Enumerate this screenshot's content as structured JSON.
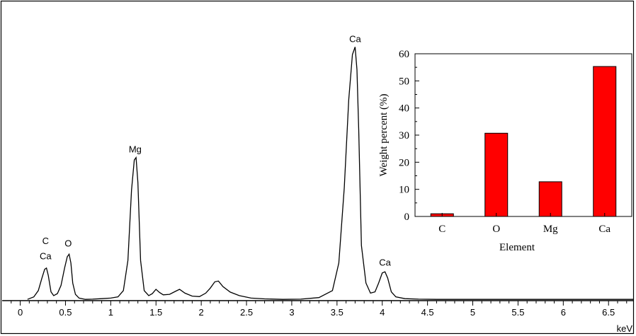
{
  "chart_data": [
    {
      "type": "line",
      "title": "",
      "xlabel": "keV",
      "ylabel": "",
      "xlim": [
        -0.2,
        6.78
      ],
      "ylim": [
        0,
        100
      ],
      "x_ticks": [
        "0",
        "0.5",
        "1",
        "1.5",
        "2",
        "2.5",
        "3",
        "3.5",
        "4",
        "4.5",
        "5",
        "5.5",
        "6",
        "6.5"
      ],
      "series": [
        {
          "x": [
            0.08,
            0.15,
            0.2,
            0.24,
            0.27,
            0.29,
            0.31,
            0.34,
            0.37,
            0.41,
            0.45,
            0.49,
            0.52,
            0.54,
            0.56,
            0.58,
            0.61,
            0.65,
            0.72,
            0.8,
            0.9,
            1.0,
            1.08,
            1.14,
            1.19,
            1.23,
            1.26,
            1.28,
            1.3,
            1.33,
            1.37,
            1.42,
            1.46,
            1.5,
            1.54,
            1.58,
            1.65,
            1.72,
            1.76,
            1.82,
            1.9,
            1.98,
            2.05,
            2.1,
            2.15,
            2.19,
            2.24,
            2.32,
            2.42,
            2.55,
            2.7,
            2.9,
            3.1,
            3.3,
            3.45,
            3.52,
            3.58,
            3.63,
            3.67,
            3.7,
            3.72,
            3.74,
            3.77,
            3.82,
            3.87,
            3.92,
            3.96,
            4.0,
            4.03,
            4.06,
            4.1,
            4.15,
            4.25,
            4.4,
            4.6,
            5.0,
            5.5,
            6.0,
            6.5,
            6.78
          ],
          "y": [
            0.5,
            1.5,
            4.0,
            9.0,
            12.5,
            13.0,
            10.0,
            3.5,
            2.0,
            2.8,
            6.0,
            13.0,
            17.5,
            18.5,
            15.0,
            7.0,
            2.5,
            1.0,
            0.5,
            0.6,
            0.8,
            1.0,
            1.5,
            4.0,
            16.0,
            44.0,
            56.0,
            57.0,
            47.0,
            16.0,
            4.0,
            2.0,
            2.8,
            4.5,
            3.2,
            2.3,
            2.5,
            3.8,
            4.5,
            3.0,
            1.8,
            1.6,
            3.0,
            5.0,
            7.5,
            7.8,
            5.6,
            3.4,
            2.0,
            1.0,
            0.7,
            0.5,
            0.6,
            1.2,
            4.0,
            15.0,
            45.0,
            80.0,
            98.0,
            101.0,
            92.0,
            68.0,
            22.0,
            7.0,
            3.0,
            3.5,
            7.0,
            11.0,
            11.5,
            9.0,
            3.5,
            1.5,
            0.8,
            0.6,
            0.5,
            0.5,
            0.5,
            0.5,
            0.5,
            0.5
          ]
        }
      ],
      "annotations": [
        {
          "text": "C",
          "x": 0.28,
          "y": 22.5
        },
        {
          "text": "Ca",
          "x": 0.28,
          "y": 16.5
        },
        {
          "text": "O",
          "x": 0.53,
          "y": 21.5
        },
        {
          "text": "Mg",
          "x": 1.27,
          "y": 59.0
        },
        {
          "text": "Ca",
          "x": 3.7,
          "y": 103.0
        },
        {
          "text": "Ca",
          "x": 4.03,
          "y": 14.0
        }
      ]
    },
    {
      "type": "bar",
      "title": "",
      "xlabel": "Element",
      "ylabel": "Weight percent (%)",
      "categories": [
        "C",
        "O",
        "Mg",
        "Ca"
      ],
      "values": [
        1.0,
        30.7,
        12.8,
        55.3
      ],
      "ylim": [
        0,
        60
      ],
      "y_ticks": [
        "0",
        "10",
        "20",
        "30",
        "40",
        "50",
        "60"
      ],
      "bar_color": "#ff0000"
    }
  ]
}
